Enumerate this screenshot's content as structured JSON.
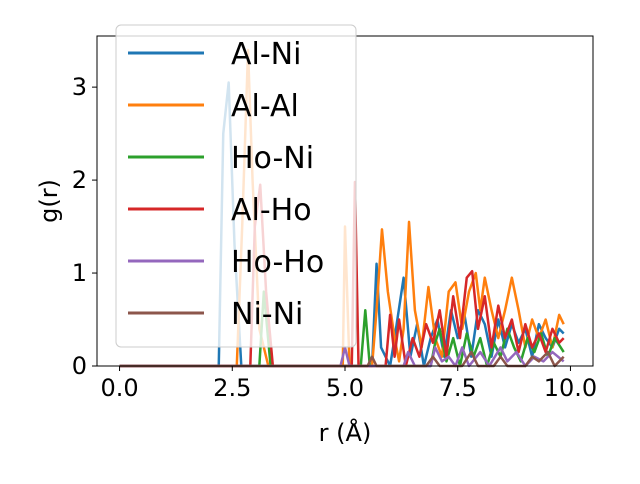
{
  "chart_data": {
    "type": "line",
    "xlabel": "r (Å)",
    "ylabel": "g(r)",
    "xlim": [
      -0.5,
      10.5
    ],
    "ylim": [
      0,
      3.55
    ],
    "xticks": [
      0.0,
      2.5,
      5.0,
      7.5,
      10.0
    ],
    "xtick_labels": [
      "0.0",
      "2.5",
      "5.0",
      "7.5",
      "10.0"
    ],
    "yticks": [
      0,
      1,
      2,
      3
    ],
    "ytick_labels": [
      "0",
      "1",
      "2",
      "3"
    ],
    "grid": false,
    "legend_position": "upper-left",
    "series": [
      {
        "name": "Al-Ni",
        "color": "#1f77b4",
        "points": [
          [
            0,
            0
          ],
          [
            2.2,
            0
          ],
          [
            2.3,
            2.5
          ],
          [
            2.42,
            3.05
          ],
          [
            2.55,
            1.3
          ],
          [
            2.7,
            0
          ],
          [
            5.6,
            0
          ],
          [
            5.7,
            1.1
          ],
          [
            5.8,
            0.2
          ],
          [
            6.0,
            0
          ],
          [
            6.1,
            0.3
          ],
          [
            6.3,
            0.95
          ],
          [
            6.45,
            0.1
          ],
          [
            6.6,
            0.45
          ],
          [
            6.75,
            0
          ],
          [
            6.9,
            0.3
          ],
          [
            7.05,
            0.5
          ],
          [
            7.2,
            0.1
          ],
          [
            7.35,
            0.6
          ],
          [
            7.5,
            0.3
          ],
          [
            7.65,
            0.55
          ],
          [
            7.8,
            0.1
          ],
          [
            7.95,
            0.6
          ],
          [
            8.1,
            0.45
          ],
          [
            8.25,
            0.1
          ],
          [
            8.4,
            0.5
          ],
          [
            8.55,
            0.2
          ],
          [
            8.7,
            0.45
          ],
          [
            8.85,
            0.25
          ],
          [
            9.0,
            0.4
          ],
          [
            9.15,
            0.1
          ],
          [
            9.3,
            0.45
          ],
          [
            9.45,
            0.3
          ],
          [
            9.6,
            0.2
          ],
          [
            9.75,
            0.4
          ],
          [
            9.85,
            0.35
          ]
        ]
      },
      {
        "name": "Al-Al",
        "color": "#ff7f0e",
        "points": [
          [
            0,
            0
          ],
          [
            2.6,
            0
          ],
          [
            2.72,
            1.5
          ],
          [
            2.85,
            3.4
          ],
          [
            2.95,
            2.0
          ],
          [
            3.1,
            0.4
          ],
          [
            3.3,
            0
          ],
          [
            4.95,
            0
          ],
          [
            5.0,
            1.5
          ],
          [
            5.1,
            0
          ],
          [
            5.6,
            0
          ],
          [
            5.7,
            0.6
          ],
          [
            5.82,
            1.47
          ],
          [
            5.95,
            0.8
          ],
          [
            6.1,
            0.3
          ],
          [
            6.2,
            0.05
          ],
          [
            6.3,
            0.4
          ],
          [
            6.42,
            1.55
          ],
          [
            6.55,
            0.6
          ],
          [
            6.7,
            0.2
          ],
          [
            6.85,
            0.85
          ],
          [
            7.0,
            0.3
          ],
          [
            7.15,
            0.1
          ],
          [
            7.3,
            0.8
          ],
          [
            7.45,
            0.9
          ],
          [
            7.6,
            0.4
          ],
          [
            7.75,
            0.8
          ],
          [
            7.9,
            1.0
          ],
          [
            8.0,
            0.6
          ],
          [
            8.1,
            0.95
          ],
          [
            8.25,
            0.6
          ],
          [
            8.4,
            0.3
          ],
          [
            8.55,
            0.6
          ],
          [
            8.7,
            0.95
          ],
          [
            8.85,
            0.6
          ],
          [
            9.0,
            0.2
          ],
          [
            9.15,
            0.5
          ],
          [
            9.3,
            0.3
          ],
          [
            9.45,
            0.5
          ],
          [
            9.6,
            0.2
          ],
          [
            9.75,
            0.55
          ],
          [
            9.85,
            0.45
          ]
        ]
      },
      {
        "name": "Ho-Ni",
        "color": "#2ca02c",
        "points": [
          [
            0,
            0
          ],
          [
            3.1,
            0
          ],
          [
            3.2,
            0.8
          ],
          [
            3.35,
            0
          ],
          [
            5.35,
            0
          ],
          [
            5.45,
            0.6
          ],
          [
            5.55,
            0
          ],
          [
            6.9,
            0
          ],
          [
            7.0,
            0.25
          ],
          [
            7.1,
            0.4
          ],
          [
            7.25,
            0.05
          ],
          [
            7.4,
            0.3
          ],
          [
            7.55,
            0
          ],
          [
            7.7,
            0.35
          ],
          [
            7.85,
            0.1
          ],
          [
            8.0,
            0.3
          ],
          [
            8.15,
            0
          ],
          [
            8.3,
            0.25
          ],
          [
            8.45,
            0.1
          ],
          [
            8.6,
            0.4
          ],
          [
            8.75,
            0.2
          ],
          [
            8.9,
            0.05
          ],
          [
            9.05,
            0.3
          ],
          [
            9.2,
            0.15
          ],
          [
            9.35,
            0.35
          ],
          [
            9.5,
            0.1
          ],
          [
            9.65,
            0.3
          ],
          [
            9.85,
            0.15
          ]
        ]
      },
      {
        "name": "Al-Ho",
        "color": "#d62728",
        "points": [
          [
            0,
            0
          ],
          [
            2.9,
            0
          ],
          [
            3.0,
            1.5
          ],
          [
            3.12,
            1.95
          ],
          [
            3.25,
            0.8
          ],
          [
            3.4,
            0
          ],
          [
            5.15,
            0
          ],
          [
            5.22,
            1.98
          ],
          [
            5.3,
            0
          ],
          [
            5.9,
            0
          ],
          [
            6.0,
            0.55
          ],
          [
            6.1,
            0.1
          ],
          [
            6.2,
            0.5
          ],
          [
            6.35,
            0
          ],
          [
            6.5,
            0.3
          ],
          [
            6.65,
            0.1
          ],
          [
            6.8,
            0.45
          ],
          [
            6.95,
            0.25
          ],
          [
            7.1,
            0.6
          ],
          [
            7.25,
            0.1
          ],
          [
            7.4,
            0.75
          ],
          [
            7.55,
            0.3
          ],
          [
            7.7,
            0.95
          ],
          [
            7.82,
            1.02
          ],
          [
            7.95,
            0.4
          ],
          [
            8.1,
            0.75
          ],
          [
            8.25,
            0.2
          ],
          [
            8.4,
            0.65
          ],
          [
            8.55,
            0.3
          ],
          [
            8.7,
            0.5
          ],
          [
            8.85,
            0.15
          ],
          [
            9.0,
            0.45
          ],
          [
            9.15,
            0.2
          ],
          [
            9.3,
            0.35
          ],
          [
            9.45,
            0.15
          ],
          [
            9.6,
            0.4
          ],
          [
            9.75,
            0.25
          ],
          [
            9.85,
            0.3
          ]
        ]
      },
      {
        "name": "Ho-Ho",
        "color": "#9467bd",
        "points": [
          [
            0,
            0
          ],
          [
            4.9,
            0
          ],
          [
            5.0,
            0.2
          ],
          [
            5.1,
            0
          ],
          [
            6.3,
            0
          ],
          [
            6.4,
            0.15
          ],
          [
            6.55,
            0
          ],
          [
            6.9,
            0
          ],
          [
            7.0,
            0.2
          ],
          [
            7.15,
            0.05
          ],
          [
            7.3,
            0.1
          ],
          [
            7.45,
            0
          ],
          [
            7.6,
            0.2
          ],
          [
            7.75,
            0
          ],
          [
            8.0,
            0.15
          ],
          [
            8.2,
            0
          ],
          [
            8.45,
            0.2
          ],
          [
            8.6,
            0.05
          ],
          [
            8.8,
            0.15
          ],
          [
            9.0,
            0
          ],
          [
            9.2,
            0.1
          ],
          [
            9.4,
            0.05
          ],
          [
            9.6,
            0.15
          ],
          [
            9.85,
            0.05
          ]
        ]
      },
      {
        "name": "Ni-Ni",
        "color": "#8c564b",
        "points": [
          [
            0,
            0
          ],
          [
            5.5,
            0
          ],
          [
            5.6,
            0.1
          ],
          [
            5.7,
            0
          ],
          [
            6.8,
            0
          ],
          [
            6.95,
            0.1
          ],
          [
            7.1,
            0
          ],
          [
            7.6,
            0
          ],
          [
            7.8,
            0.15
          ],
          [
            7.95,
            0
          ],
          [
            8.3,
            0
          ],
          [
            8.45,
            0.1
          ],
          [
            8.6,
            0
          ],
          [
            9.0,
            0
          ],
          [
            9.15,
            0.1
          ],
          [
            9.3,
            0.05
          ],
          [
            9.5,
            0.15
          ],
          [
            9.65,
            0
          ],
          [
            9.85,
            0.1
          ]
        ]
      }
    ]
  }
}
